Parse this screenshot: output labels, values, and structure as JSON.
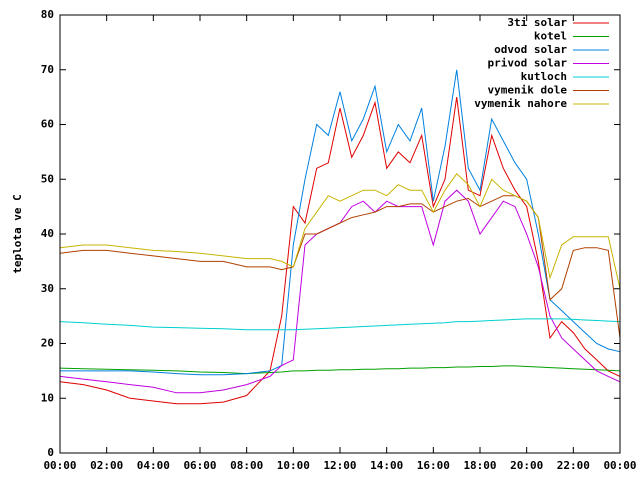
{
  "chart_data": {
    "type": "line",
    "y_label": "teplota ve C",
    "x": [
      0,
      1,
      2,
      3,
      4,
      5,
      6,
      7,
      8,
      9,
      9.5,
      10,
      10.5,
      11,
      11.5,
      12,
      12.5,
      13,
      13.5,
      14,
      14.5,
      15,
      15.5,
      16,
      16.5,
      17,
      17.5,
      18,
      18.5,
      19,
      19.5,
      20,
      20.5,
      21,
      21.5,
      22,
      22.5,
      23,
      23.5,
      24
    ],
    "xlim": [
      0,
      24
    ],
    "xticks": [
      {
        "value": 0,
        "label": "00:00"
      },
      {
        "value": 2,
        "label": "02:00"
      },
      {
        "value": 4,
        "label": "04:00"
      },
      {
        "value": 6,
        "label": "06:00"
      },
      {
        "value": 8,
        "label": "08:00"
      },
      {
        "value": 10,
        "label": "10:00"
      },
      {
        "value": 12,
        "label": "12:00"
      },
      {
        "value": 14,
        "label": "14:00"
      },
      {
        "value": 16,
        "label": "16:00"
      },
      {
        "value": 18,
        "label": "18:00"
      },
      {
        "value": 20,
        "label": "20:00"
      },
      {
        "value": 22,
        "label": "22:00"
      },
      {
        "value": 24,
        "label": "00:00"
      }
    ],
    "ylim": [
      0,
      80
    ],
    "yticks": [
      0,
      10,
      20,
      30,
      40,
      50,
      60,
      70,
      80
    ],
    "legend": "top-right",
    "series": [
      {
        "name": "3ti solar",
        "color": "#e00000",
        "values": [
          13,
          12.5,
          11.5,
          10,
          9.5,
          9,
          9,
          9.3,
          10.5,
          15,
          25,
          45,
          42,
          52,
          53,
          63,
          54,
          58,
          64,
          52,
          55,
          53,
          58,
          45,
          50,
          65,
          48,
          47,
          58,
          52,
          48,
          45,
          35,
          21,
          24,
          22,
          19,
          17,
          15,
          14
        ]
      },
      {
        "name": "kotel",
        "color": "#00a000",
        "values": [
          15.5,
          15.4,
          15.3,
          15.2,
          15.1,
          15,
          14.8,
          14.7,
          14.5,
          14.7,
          14.8,
          15,
          15,
          15.1,
          15.1,
          15.2,
          15.2,
          15.3,
          15.3,
          15.4,
          15.4,
          15.5,
          15.5,
          15.6,
          15.6,
          15.7,
          15.7,
          15.8,
          15.8,
          15.9,
          15.9,
          15.8,
          15.7,
          15.6,
          15.5,
          15.4,
          15.3,
          15.2,
          15.1,
          15
        ]
      },
      {
        "name": "odvod solar",
        "color": "#0080e0",
        "values": [
          15,
          15,
          15,
          15,
          14.8,
          14.5,
          14.3,
          14.3,
          14.5,
          15,
          16,
          38,
          50,
          60,
          58,
          66,
          57,
          61,
          67,
          55,
          60,
          57,
          63,
          46,
          56,
          70,
          52,
          48,
          61,
          57,
          53,
          50,
          40,
          28,
          26,
          24,
          22,
          20,
          19,
          18.5
        ]
      },
      {
        "name": "privod solar",
        "color": "#c000e0",
        "values": [
          14,
          13.5,
          13,
          12.5,
          12,
          11,
          11,
          11.5,
          12.5,
          14,
          16,
          17,
          38,
          40,
          41,
          42,
          45,
          46,
          44,
          46,
          45,
          45,
          45,
          38,
          46,
          48,
          46,
          40,
          43,
          46,
          45,
          40,
          34,
          25,
          21,
          19,
          17,
          15,
          14,
          13
        ]
      },
      {
        "name": "kutloch",
        "color": "#00d0d0",
        "values": [
          24,
          23.8,
          23.5,
          23.3,
          23,
          22.9,
          22.8,
          22.7,
          22.5,
          22.5,
          22.5,
          22.5,
          22.6,
          22.7,
          22.8,
          22.9,
          23,
          23.1,
          23.2,
          23.3,
          23.4,
          23.5,
          23.6,
          23.7,
          23.8,
          24,
          24,
          24.1,
          24.2,
          24.3,
          24.4,
          24.5,
          24.5,
          24.5,
          24.5,
          24.4,
          24.3,
          24.2,
          24.1,
          24
        ]
      },
      {
        "name": "vymenik dole",
        "color": "#b04000",
        "values": [
          36.5,
          37,
          37,
          36.5,
          36,
          35.5,
          35,
          35,
          34,
          34,
          33.5,
          34,
          40,
          40,
          41,
          42,
          43,
          43.5,
          44,
          45,
          45,
          45.5,
          45.5,
          44,
          45,
          46,
          46.5,
          45,
          46,
          47,
          47,
          46,
          43,
          28,
          30,
          37,
          37.5,
          37.5,
          37,
          21
        ]
      },
      {
        "name": "vymenik nahore",
        "color": "#c8b400",
        "values": [
          37.5,
          38,
          38,
          37.5,
          37,
          36.8,
          36.5,
          36,
          35.5,
          35.5,
          35,
          34,
          41,
          44,
          47,
          46,
          47,
          48,
          48,
          47,
          49,
          48,
          48,
          44,
          48,
          51,
          49,
          45,
          50,
          48,
          47,
          46,
          43,
          32,
          38,
          39.5,
          39.5,
          39.5,
          39.5,
          30
        ]
      }
    ]
  }
}
